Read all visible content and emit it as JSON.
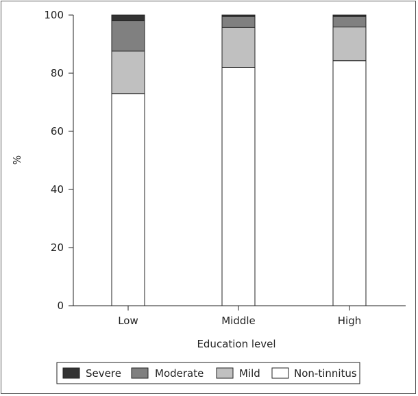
{
  "chart_data": {
    "type": "bar",
    "stacked": true,
    "categories": [
      "Low",
      "Middle",
      "High"
    ],
    "series": [
      {
        "name": "Non-tinnitus",
        "values": [
          73,
          82,
          84.3
        ],
        "color": "#ffffff"
      },
      {
        "name": "Mild",
        "values": [
          14.6,
          13.7,
          11.6
        ],
        "color": "#c0c0c0"
      },
      {
        "name": "Moderate",
        "values": [
          10.4,
          3.8,
          3.6
        ],
        "color": "#808080"
      },
      {
        "name": "Severe",
        "values": [
          2,
          0.5,
          0.5
        ],
        "color": "#333333"
      }
    ],
    "xlabel": "Education level",
    "ylabel": "%",
    "ylim": [
      0,
      100
    ],
    "yticks": [
      0,
      20,
      40,
      60,
      80,
      100
    ],
    "legend_order": [
      "Severe",
      "Moderate",
      "Mild",
      "Non-tinnitus"
    ],
    "legend_position": "bottom"
  }
}
